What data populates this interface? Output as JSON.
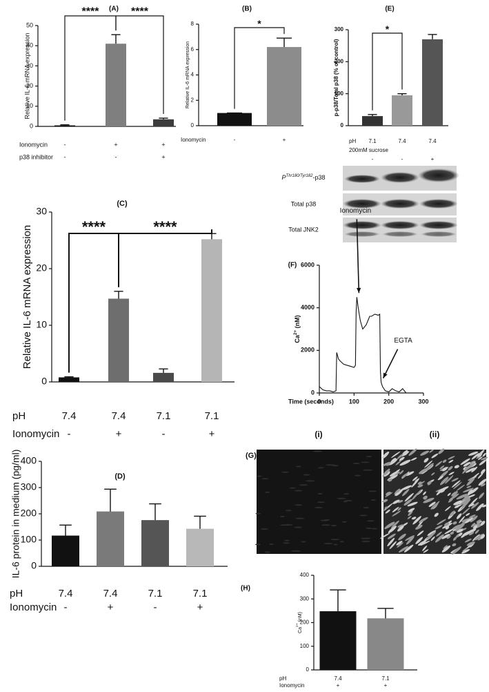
{
  "chart_data": [
    {
      "type": "bar",
      "panel": "(A)",
      "ylabel": "Relative IL-6 mRNA expression",
      "values": [
        0.5,
        41,
        3.5
      ],
      "errors": [
        0.3,
        4.5,
        0.6
      ],
      "colors": [
        "#111111",
        "#7f7f7f",
        "#3c3c3c"
      ],
      "ylim": [
        0,
        50
      ],
      "yticks": [
        0,
        10,
        20,
        30,
        40,
        50
      ],
      "conditions": [
        {
          "label": "Ionomycin",
          "values": [
            "-",
            "+",
            "+"
          ]
        },
        {
          "label": "p38 inhibitor",
          "values": [
            "-",
            "-",
            "+"
          ]
        }
      ],
      "brackets": [
        {
          "label": "****",
          "bars": [
            0,
            1
          ]
        },
        {
          "label": "****",
          "bars": [
            1,
            2
          ]
        }
      ]
    },
    {
      "type": "bar",
      "panel": "(B)",
      "ylabel": "Relative IL-6 mRNA expression",
      "values": [
        1,
        6.2
      ],
      "errors": [
        0,
        0.7
      ],
      "colors": [
        "#111111",
        "#8c8c8c"
      ],
      "ylim": [
        0,
        8
      ],
      "yticks": [
        0,
        2,
        4,
        6,
        8
      ],
      "conditions": [
        {
          "label": "Ionomycin",
          "values": [
            "-",
            "+"
          ]
        }
      ],
      "brackets": [
        {
          "label": "*",
          "bars": [
            0,
            1
          ]
        }
      ]
    },
    {
      "type": "bar",
      "panel": "(E)",
      "ylabel": "p-p38/Total p38 (% of control)",
      "values": [
        30,
        95,
        270
      ],
      "errors": [
        5,
        5,
        15
      ],
      "colors": [
        "#333333",
        "#999999",
        "#555555"
      ],
      "ylim": [
        0,
        300
      ],
      "yticks": [
        0,
        100,
        200,
        300
      ],
      "conditions": [
        {
          "label": "pH",
          "values": [
            "7.1",
            "7.4",
            "7.4"
          ]
        },
        {
          "label": "200mM sucrose",
          "values": [
            "-",
            "-",
            "+"
          ]
        }
      ],
      "brackets": [
        {
          "label": "*",
          "bars": [
            0,
            1
          ]
        }
      ]
    },
    {
      "type": "bar",
      "panel": "(C)",
      "ylabel": "Relative IL-6 mRNA expression",
      "values": [
        0.8,
        14.7,
        1.6,
        25.2
      ],
      "errors": [
        0.1,
        1.3,
        0.7,
        1.0
      ],
      "colors": [
        "#111111",
        "#6e6e6e",
        "#4a4a4a",
        "#b5b5b5"
      ],
      "ylim": [
        0,
        30
      ],
      "yticks": [
        0,
        10,
        20,
        30
      ],
      "conditions": [
        {
          "label": "pH",
          "values": [
            "7.4",
            "7.4",
            "7.1",
            "7.1"
          ]
        },
        {
          "label": "Ionomycin",
          "values": [
            "-",
            "+",
            "-",
            "+"
          ]
        }
      ],
      "brackets": [
        {
          "label": "****",
          "bars": [
            0,
            1
          ]
        },
        {
          "label": "****",
          "bars": [
            1,
            3
          ]
        }
      ]
    },
    {
      "type": "bar",
      "panel": "(D)",
      "ylabel": "IL-6 protein in medium (pg/ml)",
      "values": [
        117,
        209,
        176,
        143
      ],
      "errors": [
        40,
        85,
        62,
        48
      ],
      "colors": [
        "#111111",
        "#7a7a7a",
        "#555555",
        "#b8b8b8"
      ],
      "ylim": [
        0,
        400
      ],
      "yticks": [
        0,
        100,
        200,
        300,
        400
      ],
      "conditions": [
        {
          "label": "pH",
          "values": [
            "7.4",
            "7.4",
            "7.1",
            "7.1"
          ]
        },
        {
          "label": "Ionomycin",
          "values": [
            "-",
            "+",
            "-",
            "+"
          ]
        }
      ],
      "brackets": []
    },
    {
      "type": "line",
      "panel": "(F)",
      "ylabel": {
        "text": "Ca",
        "sup": "2+",
        "after": " (nM)"
      },
      "xlabel": "Time (seconds)",
      "color": "#111111",
      "x": [
        0,
        10,
        20,
        30,
        40,
        48,
        50,
        55,
        60,
        70,
        80,
        90,
        100,
        104,
        106,
        108,
        112,
        118,
        125,
        135,
        145,
        150,
        160,
        170,
        174,
        176,
        178,
        182,
        190,
        200,
        210,
        220,
        230,
        240,
        250
      ],
      "y": [
        300,
        150,
        100,
        100,
        50,
        100,
        1900,
        1600,
        1500,
        1350,
        1300,
        1250,
        1200,
        1300,
        3800,
        4500,
        4000,
        3400,
        3000,
        3200,
        3600,
        3600,
        3700,
        3650,
        3700,
        1000,
        500,
        300,
        100,
        50,
        200,
        100,
        50,
        200,
        0
      ],
      "xlim": [
        0,
        300
      ],
      "xticks": [
        0,
        100,
        200,
        300
      ],
      "ylim": [
        0,
        6000
      ],
      "yticks": [
        0,
        2000,
        4000,
        6000
      ],
      "annotations": [
        {
          "text": "Ionomycin",
          "x": 108,
          "y": 4500
        },
        {
          "text": "EGTA",
          "x": 178,
          "y": 500
        }
      ]
    },
    {
      "type": "bar",
      "panel": "(H)",
      "ylabel": {
        "text": "Ca",
        "sup": "2+",
        "after": " (nM)"
      },
      "values": [
        248,
        218
      ],
      "errors": [
        90,
        42
      ],
      "colors": [
        "#111111",
        "#888888"
      ],
      "ylim": [
        0,
        400
      ],
      "yticks": [
        0,
        100,
        200,
        300,
        400
      ],
      "conditions": [
        {
          "label": "pH",
          "values": [
            "7.4",
            "7.1"
          ]
        },
        {
          "label": "Ionomycin",
          "values": [
            "+",
            "+"
          ]
        }
      ],
      "brackets": []
    }
  ],
  "blot": {
    "rows": [
      {
        "text": "P",
        "sup": "Thr180/Tyr182",
        "after": "-p38"
      },
      {
        "text": "Total p38"
      },
      {
        "text": "Total JNK2"
      }
    ]
  },
  "images": {
    "panel": "(G)",
    "labels": [
      "(i)",
      "(ii)"
    ]
  }
}
